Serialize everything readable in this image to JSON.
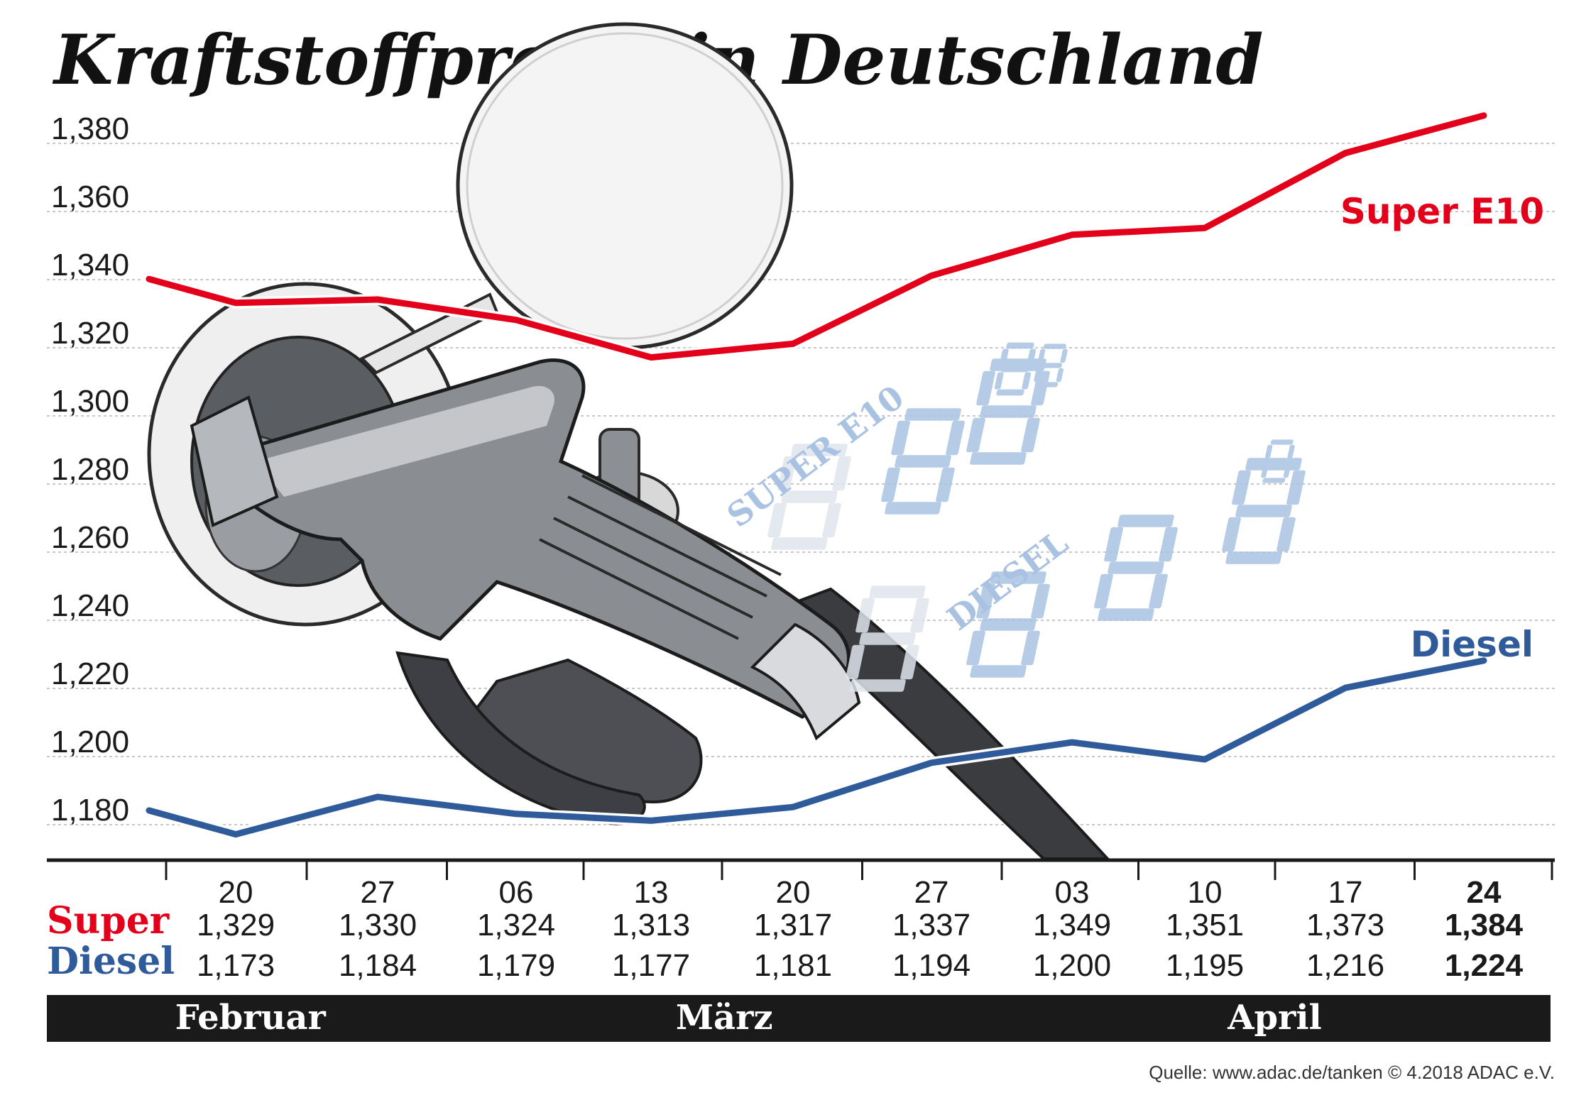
{
  "title": "Kraftstoffpreise in Deutschland",
  "source": "Quelle: www.adac.de/tanken   © 4.2018  ADAC e.V.",
  "colors": {
    "super": "#e2001a",
    "diesel": "#2f5b9a",
    "grid": "#c8c8c8",
    "month_bar": "#1a1a1a",
    "deco_blue": "#a9c2e2"
  },
  "illustration": {
    "description_icon": "fuel-nozzle-illustration",
    "deco_labels": [
      "SUPER E10",
      "DIESEL"
    ]
  },
  "chart_data": {
    "type": "line",
    "title": "Kraftstoffpreise in Deutschland",
    "xlabel": "",
    "ylabel": "",
    "ylim": [
      1.168,
      1.386
    ],
    "yticks": [
      "1,380",
      "1,360",
      "1,340",
      "1,320",
      "1,300",
      "1,280",
      "1,260",
      "1,240",
      "1,220",
      "1,200",
      "1,180"
    ],
    "ytick_values": [
      1.38,
      1.36,
      1.34,
      1.32,
      1.3,
      1.28,
      1.26,
      1.24,
      1.22,
      1.2,
      1.18
    ],
    "categories": [
      "20",
      "27",
      "06",
      "13",
      "20",
      "27",
      "03",
      "10",
      "17",
      "24"
    ],
    "highlight_index": 9,
    "grid": true,
    "series": [
      {
        "name": "Super E10",
        "row_label": "Super",
        "color": "#e2001a",
        "start_value": 1.336,
        "values": [
          1.329,
          1.33,
          1.324,
          1.313,
          1.317,
          1.337,
          1.349,
          1.351,
          1.373,
          1.384
        ],
        "value_labels": [
          "1,329",
          "1,330",
          "1,324",
          "1,313",
          "1,317",
          "1,337",
          "1,349",
          "1,351",
          "1,373",
          "1,384"
        ]
      },
      {
        "name": "Diesel",
        "row_label": "Diesel",
        "color": "#2f5b9a",
        "start_value": 1.18,
        "values": [
          1.173,
          1.184,
          1.179,
          1.177,
          1.181,
          1.194,
          1.2,
          1.195,
          1.216,
          1.224
        ],
        "value_labels": [
          "1,173",
          "1,184",
          "1,179",
          "1,177",
          "1,181",
          "1,194",
          "1,200",
          "1,195",
          "1,216",
          "1,224"
        ]
      }
    ],
    "months": [
      {
        "label": "Februar",
        "from": 0,
        "to": 1
      },
      {
        "label": "März",
        "from": 2,
        "to": 5
      },
      {
        "label": "April",
        "from": 6,
        "to": 9
      }
    ]
  }
}
